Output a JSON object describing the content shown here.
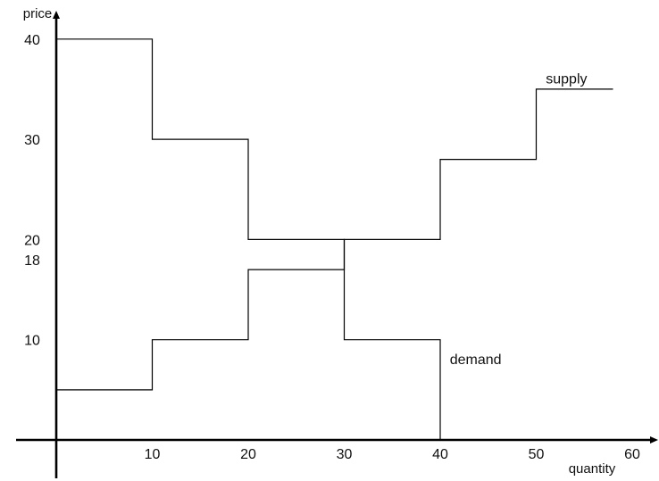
{
  "chart_data": {
    "type": "line",
    "title": "",
    "xlabel": "quantity",
    "ylabel": "price",
    "xlim": [
      0,
      60
    ],
    "ylim": [
      0,
      40
    ],
    "grid": false,
    "x_ticks": [
      {
        "value": 10,
        "label": "10"
      },
      {
        "value": 20,
        "label": "20"
      },
      {
        "value": 30,
        "label": "30"
      },
      {
        "value": 40,
        "label": "40"
      },
      {
        "value": 50,
        "label": "50"
      },
      {
        "value": 60,
        "label": "60"
      }
    ],
    "y_ticks": [
      {
        "value": 10,
        "label": "10"
      },
      {
        "value": 18,
        "label": "18"
      },
      {
        "value": 20,
        "label": "20"
      },
      {
        "value": 30,
        "label": "30"
      },
      {
        "value": 40,
        "label": "40"
      }
    ],
    "series": [
      {
        "name": "supply",
        "step_points": [
          [
            0,
            5
          ],
          [
            10,
            5
          ],
          [
            10,
            10
          ],
          [
            20,
            10
          ],
          [
            20,
            17
          ],
          [
            30,
            17
          ],
          [
            30,
            20
          ],
          [
            40,
            20
          ],
          [
            40,
            28
          ],
          [
            50,
            28
          ],
          [
            50,
            35
          ],
          [
            58,
            35
          ]
        ]
      },
      {
        "name": "demand",
        "step_points": [
          [
            0,
            40
          ],
          [
            10,
            40
          ],
          [
            10,
            30
          ],
          [
            20,
            30
          ],
          [
            20,
            20
          ],
          [
            30,
            20
          ],
          [
            30,
            10
          ],
          [
            40,
            10
          ],
          [
            40,
            0
          ]
        ]
      }
    ],
    "annotations": [
      {
        "text": "supply",
        "series": "supply",
        "x": 51,
        "y": 36
      },
      {
        "text": "demand",
        "series": "demand",
        "x": 41,
        "y": 8
      }
    ]
  }
}
